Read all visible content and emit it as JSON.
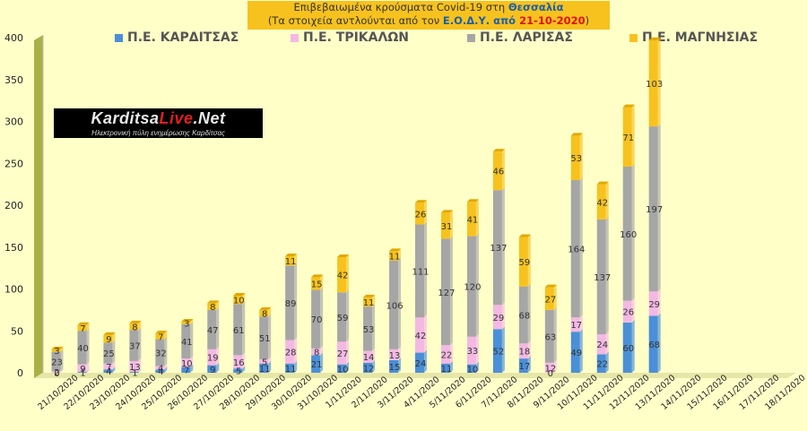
{
  "title": {
    "line1_prefix": "Επιβεβαιωμένα κρούσματα Covid-19 στη ",
    "line1_region": "Θεσσαλία",
    "line2_prefix": "(Τα στοιχεία αντλούνται από τον ",
    "line2_source": "Ε.Ο.Δ.Υ. από ",
    "line2_date": "21-10-2020",
    "line2_suffix": ")"
  },
  "logo": {
    "name_part1": "Karditsa",
    "name_part2": "Live",
    "name_part3": ".Net",
    "tagline": "Ηλεκτρονική πύλη ενημέρωσης Καρδίτσας"
  },
  "colors": {
    "karditsa": "#4a8fd8",
    "trikala": "#f4b8e4",
    "larisa": "#a6a6a6",
    "magnisia": "#f7c21e",
    "background": "#ffffc8"
  },
  "chart_data": {
    "type": "bar",
    "stacked": true,
    "categories": [
      "21/10/2020",
      "22/10/2020",
      "23/10/2020",
      "24/10/2020",
      "25/10/2020",
      "26/10/2020",
      "27/10/2020",
      "28/10/2020",
      "29/10/2020",
      "30/10/2020",
      "31/10/2020",
      "1/11/2020",
      "2/11/2020",
      "3/11/2020",
      "4/11/2020",
      "5/11/2020",
      "6/11/2020",
      "7/11/2020",
      "8/11/2020",
      "9/11/2020",
      "10/11/2020",
      "11/11/2020",
      "12/11/2020",
      "13/11/2020",
      "14/11/2020",
      "15/11/2020",
      "16/11/2020",
      "17/11/2020",
      "18/11/2020"
    ],
    "series": [
      {
        "name": "Π.Ε. ΚΑΡΔΙΤΣΑΣ",
        "values": [
          0,
          1,
          4,
          1,
          4,
          7,
          9,
          5,
          11,
          11,
          21,
          10,
          12,
          15,
          24,
          11,
          10,
          52,
          17,
          0,
          49,
          22,
          60,
          68,
          null,
          null,
          null,
          null,
          null
        ]
      },
      {
        "name": "Π.Ε. ΤΡΙΚΑΛΩΝ",
        "values": [
          2,
          9,
          7,
          13,
          4,
          10,
          19,
          16,
          5,
          28,
          8,
          27,
          14,
          13,
          42,
          22,
          33,
          29,
          18,
          12,
          17,
          24,
          26,
          29,
          null,
          null,
          null,
          null,
          null
        ]
      },
      {
        "name": "Π.Ε. ΛΑΡΙΣΑΣ",
        "values": [
          23,
          40,
          25,
          37,
          32,
          41,
          47,
          61,
          51,
          89,
          70,
          59,
          53,
          106,
          111,
          127,
          120,
          137,
          68,
          63,
          164,
          137,
          160,
          197,
          null,
          null,
          null,
          null,
          null
        ]
      },
      {
        "name": "Π.Ε. ΜΑΓΝΗΣΙΑΣ",
        "values": [
          3,
          7,
          9,
          8,
          7,
          3,
          8,
          10,
          8,
          11,
          15,
          42,
          11,
          11,
          26,
          31,
          41,
          46,
          59,
          27,
          53,
          42,
          71,
          103,
          null,
          null,
          null,
          null,
          null
        ]
      }
    ],
    "ylim": [
      0,
      400
    ],
    "yticks": [
      0,
      50,
      100,
      150,
      200,
      250,
      300,
      350,
      400
    ],
    "grid": false,
    "legend_position": "top"
  }
}
